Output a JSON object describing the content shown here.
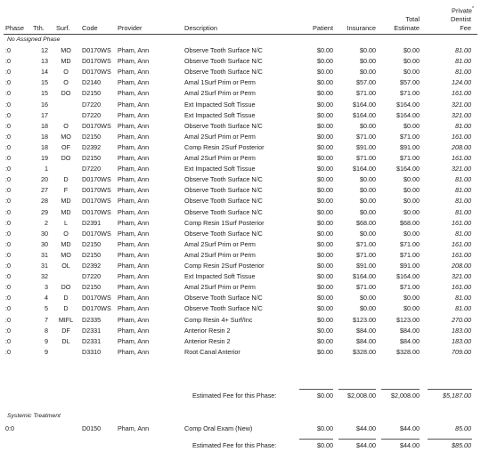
{
  "headers": {
    "phase": "Phase",
    "tth": "Tth.",
    "surf": "Surf.",
    "code": "Code",
    "provider": "Provider",
    "description": "Description",
    "patient": "Patient",
    "insurance": "Insurance",
    "total_line1": "Total",
    "total_line2": "Estimate",
    "private_line1": "Private",
    "private_asterisk": "*",
    "private_line2": "Dentist",
    "private_line3": "Fee"
  },
  "groups": [
    {
      "label": "No Assigned Phase",
      "rows": [
        {
          "phase": ":0",
          "tth": "12",
          "surf": "MO",
          "code": "D0170WS",
          "provider": "Pham, Ann",
          "desc": "Observe Tooth Surface N/C",
          "patient": "$0.00",
          "ins": "$0.00",
          "total": "$0.00",
          "priv": "81.00"
        },
        {
          "phase": ":0",
          "tth": "13",
          "surf": "MD",
          "code": "D0170WS",
          "provider": "Pham, Ann",
          "desc": "Observe Tooth Surface N/C",
          "patient": "$0.00",
          "ins": "$0.00",
          "total": "$0.00",
          "priv": "81.00"
        },
        {
          "phase": ":0",
          "tth": "14",
          "surf": "O",
          "code": "D0170WS",
          "provider": "Pham, Ann",
          "desc": "Observe Tooth Surface N/C",
          "patient": "$0.00",
          "ins": "$0.00",
          "total": "$0.00",
          "priv": "81.00"
        },
        {
          "phase": ":0",
          "tth": "15",
          "surf": "O",
          "code": "D2140",
          "provider": "Pham, Ann",
          "desc": "Amal 1Surf Prim or Perm",
          "patient": "$0.00",
          "ins": "$57.00",
          "total": "$57.00",
          "priv": "124.00"
        },
        {
          "phase": ":0",
          "tth": "15",
          "surf": "DO",
          "code": "D2150",
          "provider": "Pham, Ann",
          "desc": "Amal 2Surf Prim or Perm",
          "patient": "$0.00",
          "ins": "$71.00",
          "total": "$71.00",
          "priv": "161.00"
        },
        {
          "phase": ":0",
          "tth": "16",
          "surf": "",
          "code": "D7220",
          "provider": "Pham, Ann",
          "desc": "Ext Impacted Soft Tissue",
          "patient": "$0.00",
          "ins": "$164.00",
          "total": "$164.00",
          "priv": "321.00"
        },
        {
          "phase": ":0",
          "tth": "17",
          "surf": "",
          "code": "D7220",
          "provider": "Pham, Ann",
          "desc": "Ext Impacted Soft Tissue",
          "patient": "$0.00",
          "ins": "$164.00",
          "total": "$164.00",
          "priv": "321.00"
        },
        {
          "phase": ":0",
          "tth": "18",
          "surf": "O",
          "code": "D0170WS",
          "provider": "Pham, Ann",
          "desc": "Observe Tooth Surface N/C",
          "patient": "$0.00",
          "ins": "$0.00",
          "total": "$0.00",
          "priv": "81.00"
        },
        {
          "phase": ":0",
          "tth": "18",
          "surf": "MO",
          "code": "D2150",
          "provider": "Pham, Ann",
          "desc": "Amal 2Surf Prim or Perm",
          "patient": "$0.00",
          "ins": "$71.00",
          "total": "$71.00",
          "priv": "161.00"
        },
        {
          "phase": ":0",
          "tth": "18",
          "surf": "OF",
          "code": "D2392",
          "provider": "Pham, Ann",
          "desc": "Comp Resin 2Surf Posterior",
          "patient": "$0.00",
          "ins": "$91.00",
          "total": "$91.00",
          "priv": "208.00"
        },
        {
          "phase": ":0",
          "tth": "19",
          "surf": "DO",
          "code": "D2150",
          "provider": "Pham, Ann",
          "desc": "Amal 2Surf Prim or Perm",
          "patient": "$0.00",
          "ins": "$71.00",
          "total": "$71.00",
          "priv": "161.00"
        },
        {
          "phase": ":0",
          "tth": "1",
          "surf": "",
          "code": "D7220",
          "provider": "Pham, Ann",
          "desc": "Ext Impacted Soft Tissue",
          "patient": "$0.00",
          "ins": "$164.00",
          "total": "$164.00",
          "priv": "321.00"
        },
        {
          "phase": ":0",
          "tth": "20",
          "surf": "D",
          "code": "D0170WS",
          "provider": "Pham, Ann",
          "desc": "Observe Tooth Surface N/C",
          "patient": "$0.00",
          "ins": "$0.00",
          "total": "$0.00",
          "priv": "81.00"
        },
        {
          "phase": ":0",
          "tth": "27",
          "surf": "F",
          "code": "D0170WS",
          "provider": "Pham, Ann",
          "desc": "Observe Tooth Surface N/C",
          "patient": "$0.00",
          "ins": "$0.00",
          "total": "$0.00",
          "priv": "81.00"
        },
        {
          "phase": ":0",
          "tth": "28",
          "surf": "MD",
          "code": "D0170WS",
          "provider": "Pham, Ann",
          "desc": "Observe Tooth Surface N/C",
          "patient": "$0.00",
          "ins": "$0.00",
          "total": "$0.00",
          "priv": "81.00"
        },
        {
          "phase": ":0",
          "tth": "29",
          "surf": "MD",
          "code": "D0170WS",
          "provider": "Pham, Ann",
          "desc": "Observe Tooth Surface N/C",
          "patient": "$0.00",
          "ins": "$0.00",
          "total": "$0.00",
          "priv": "81.00"
        },
        {
          "phase": ":0",
          "tth": "2",
          "surf": "L",
          "code": "D2391",
          "provider": "Pham, Ann",
          "desc": "Comp Resin 1Surf Posterior",
          "patient": "$0.00",
          "ins": "$68.00",
          "total": "$68.00",
          "priv": "161.00"
        },
        {
          "phase": ":0",
          "tth": "30",
          "surf": "O",
          "code": "D0170WS",
          "provider": "Pham, Ann",
          "desc": "Observe Tooth Surface N/C",
          "patient": "$0.00",
          "ins": "$0.00",
          "total": "$0.00",
          "priv": "81.00"
        },
        {
          "phase": ":0",
          "tth": "30",
          "surf": "MD",
          "code": "D2150",
          "provider": "Pham, Ann",
          "desc": "Amal 2Surf Prim or Perm",
          "patient": "$0.00",
          "ins": "$71.00",
          "total": "$71.00",
          "priv": "161.00"
        },
        {
          "phase": ":0",
          "tth": "31",
          "surf": "MO",
          "code": "D2150",
          "provider": "Pham, Ann",
          "desc": "Amal 2Surf Prim or Perm",
          "patient": "$0.00",
          "ins": "$71.00",
          "total": "$71.00",
          "priv": "161.00"
        },
        {
          "phase": ":0",
          "tth": "31",
          "surf": "OL",
          "code": "D2392",
          "provider": "Pham, Ann",
          "desc": "Comp Resin 2Surf Posterior",
          "patient": "$0.00",
          "ins": "$91.00",
          "total": "$91.00",
          "priv": "208.00"
        },
        {
          "phase": ":0",
          "tth": "32",
          "surf": "",
          "code": "D7220",
          "provider": "Pham, Ann",
          "desc": "Ext Impacted Soft Tissue",
          "patient": "$0.00",
          "ins": "$164.00",
          "total": "$164.00",
          "priv": "321.00"
        },
        {
          "phase": ":0",
          "tth": "3",
          "surf": "DO",
          "code": "D2150",
          "provider": "Pham, Ann",
          "desc": "Amal 2Surf Prim or Perm",
          "patient": "$0.00",
          "ins": "$71.00",
          "total": "$71.00",
          "priv": "161.00"
        },
        {
          "phase": ":0",
          "tth": "4",
          "surf": "D",
          "code": "D0170WS",
          "provider": "Pham, Ann",
          "desc": "Observe Tooth Surface N/C",
          "patient": "$0.00",
          "ins": "$0.00",
          "total": "$0.00",
          "priv": "81.00"
        },
        {
          "phase": ":0",
          "tth": "5",
          "surf": "D",
          "code": "D0170WS",
          "provider": "Pham, Ann",
          "desc": "Observe Tooth Surface N/C",
          "patient": "$0.00",
          "ins": "$0.00",
          "total": "$0.00",
          "priv": "81.00"
        },
        {
          "phase": ":0",
          "tth": "7",
          "surf": "MIFL",
          "code": "D2335",
          "provider": "Pham, Ann",
          "desc": "Comp Resin 4+ Surf/Inc",
          "patient": "$0.00",
          "ins": "$123.00",
          "total": "$123.00",
          "priv": "270.00"
        },
        {
          "phase": ":0",
          "tth": "8",
          "surf": "DF",
          "code": "D2331",
          "provider": "Pham, Ann",
          "desc": "Anterior Resin 2",
          "patient": "$0.00",
          "ins": "$84.00",
          "total": "$84.00",
          "priv": "183.00"
        },
        {
          "phase": ":0",
          "tth": "9",
          "surf": "DL",
          "code": "D2331",
          "provider": "Pham, Ann",
          "desc": "Anterior Resin 2",
          "patient": "$0.00",
          "ins": "$84.00",
          "total": "$84.00",
          "priv": "183.00"
        },
        {
          "phase": ":0",
          "tth": "9",
          "surf": "",
          "code": "D3310",
          "provider": "Pham, Ann",
          "desc": "Root Canal Anterior",
          "patient": "$0.00",
          "ins": "$328.00",
          "total": "$328.00",
          "priv": "709.00"
        }
      ],
      "summary": {
        "label": "Estimated Fee for this Phase:",
        "patient": "$0.00",
        "ins": "$2,008.00",
        "total": "$2,008.00",
        "priv": "$5,187.00"
      }
    },
    {
      "label": "Systemic Treatment",
      "rows": [
        {
          "phase": "0:0",
          "tth": "",
          "surf": "",
          "code": "D0150",
          "provider": "Pham, Ann",
          "desc": "Comp Oral Exam (New)",
          "patient": "$0.00",
          "ins": "$44.00",
          "total": "$44.00",
          "priv": "85.00"
        }
      ],
      "summary": {
        "label": "Estimated Fee for this Phase:",
        "patient": "$0.00",
        "ins": "$44.00",
        "total": "$44.00",
        "priv": "$85.00"
      }
    }
  ]
}
